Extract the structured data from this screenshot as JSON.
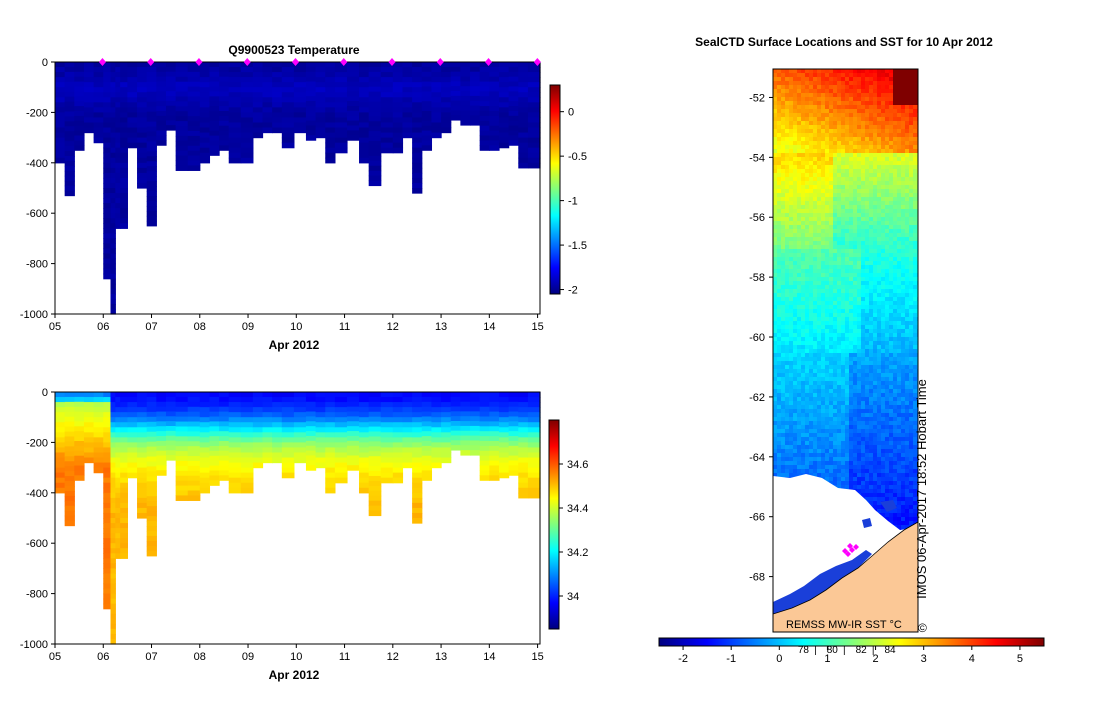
{
  "chart_data": [
    {
      "type": "heatmap",
      "title": "Q9900523  Temperature",
      "xlabel": "Apr 2012",
      "ylabel": "",
      "x_ticks": [
        "05",
        "06",
        "07",
        "08",
        "09",
        "10",
        "11",
        "12",
        "13",
        "14",
        "15"
      ],
      "xlim": [
        5,
        15.05
      ],
      "y_ticks": [
        0,
        -200,
        -400,
        -600,
        -800,
        -1000
      ],
      "ylim": [
        -1000,
        0
      ],
      "colorbar": {
        "ticks": [
          "0",
          "-0.5",
          "-1",
          "-1.5",
          "-2"
        ],
        "tick_values": [
          0,
          -0.5,
          -1,
          -1.5,
          -2
        ],
        "range": [
          -2.05,
          0.3
        ]
      },
      "profiles": {
        "day": [
          5.1,
          5.3,
          5.5,
          5.7,
          5.9,
          6.1,
          6.2,
          6.3,
          6.4,
          6.6,
          6.8,
          7.0,
          7.2,
          7.4,
          7.6,
          7.9,
          8.1,
          8.3,
          8.5,
          8.7,
          9.0,
          9.2,
          9.4,
          9.6,
          9.8,
          10.1,
          10.3,
          10.5,
          10.7,
          10.9,
          11.2,
          11.4,
          11.6,
          11.9,
          12.1,
          12.3,
          12.5,
          12.7,
          12.9,
          13.1,
          13.3,
          13.5,
          13.7,
          13.9,
          14.1,
          14.3,
          14.5,
          14.7,
          14.9
        ],
        "max_depth": [
          400,
          530,
          350,
          280,
          320,
          860,
          1000,
          660,
          660,
          340,
          500,
          650,
          330,
          270,
          430,
          430,
          400,
          370,
          350,
          400,
          400,
          300,
          280,
          280,
          340,
          280,
          310,
          300,
          400,
          360,
          310,
          400,
          490,
          360,
          360,
          300,
          520,
          350,
          300,
          280,
          230,
          250,
          250,
          350,
          350,
          340,
          330,
          420,
          420
        ]
      },
      "markers_day": [
        6,
        7,
        8,
        9,
        10,
        11,
        12,
        13,
        14,
        15
      ]
    },
    {
      "type": "heatmap",
      "title": "",
      "xlabel": "Apr 2012",
      "ylabel": "",
      "x_ticks": [
        "05",
        "06",
        "07",
        "08",
        "09",
        "10",
        "11",
        "12",
        "13",
        "14",
        "15"
      ],
      "xlim": [
        5,
        15.05
      ],
      "y_ticks": [
        0,
        -200,
        -400,
        -600,
        -800,
        -1000
      ],
      "ylim": [
        -1000,
        0
      ],
      "colorbar": {
        "ticks": [
          "34.6",
          "34.4",
          "34.2",
          "34"
        ],
        "tick_values": [
          34.6,
          34.4,
          34.2,
          34.0
        ],
        "range": [
          33.85,
          34.8
        ]
      }
    },
    {
      "type": "heatmap",
      "title": "SealCTD Surface Locations and SST for 10 Apr 2012",
      "xlabel": "",
      "ylabel": "",
      "y_ticks": [
        "-52",
        "-54",
        "-56",
        "-58",
        "-60",
        "-62",
        "-64",
        "-66",
        "-68"
      ],
      "y_tick_values": [
        -52,
        -54,
        -56,
        -58,
        -60,
        -62,
        -64,
        -66,
        -68
      ],
      "ylim": [
        -69.85,
        -51.05
      ],
      "annotations": [
        "REMSS MW-IR SST °C",
        "IMOS 06-Apr-2017 18:52 Hobart Time",
        "©"
      ],
      "colorbar": {
        "ticks": [
          "-2",
          "-1",
          "0",
          "1",
          "2",
          "3",
          "4",
          "5"
        ],
        "tick_values": [
          -2,
          -1,
          0,
          1,
          2,
          3,
          4,
          5
        ],
        "range": [
          -2.5,
          5.5
        ],
        "secondary_ticks": [
          "78",
          "80",
          "82",
          "84"
        ]
      }
    }
  ],
  "colors": {
    "jet_stops": [
      "#00007f",
      "#0000ff",
      "#007fff",
      "#00ffff",
      "#7fff7f",
      "#ffff00",
      "#ff7f00",
      "#ff0000",
      "#7f0000"
    ],
    "land": "#fbc896",
    "marker": "#ff00ff",
    "axis": "#000000"
  }
}
